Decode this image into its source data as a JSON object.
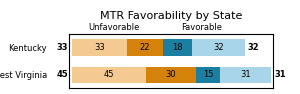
{
  "chart_data": {
    "type": "bar",
    "orientation": "horizontal",
    "stacked": true,
    "title": "MTR Favorability by State",
    "categories": [
      "West Virginia",
      "Kentucky"
    ],
    "series": [
      {
        "color": "#f5c992",
        "values": [
          45,
          33
        ]
      },
      {
        "color": "#d4820a",
        "values": [
          30,
          22
        ]
      },
      {
        "color": "#1a7fa0",
        "values": [
          15,
          18
        ]
      },
      {
        "color": "#a8d6e8",
        "values": [
          31,
          32
        ]
      }
    ],
    "annotations": [
      "Unfavorable",
      "Favorable"
    ],
    "data_labels": true,
    "xlim": [
      -2,
      122
    ],
    "tick_labels": "y",
    "grid": false
  }
}
